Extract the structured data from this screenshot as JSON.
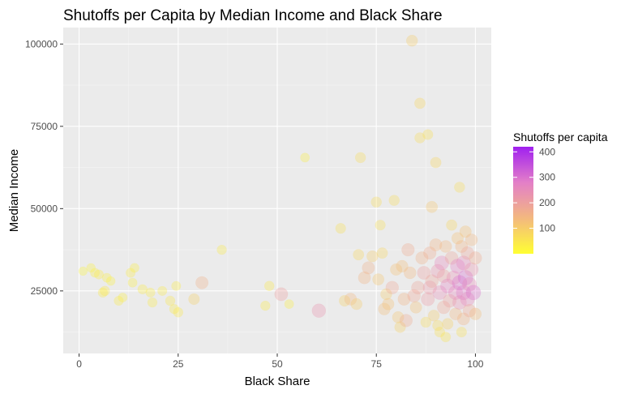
{
  "chart_data": {
    "type": "scatter",
    "title": "Shutoffs per Capita by Median Income and Black Share",
    "xlabel": "Black Share",
    "ylabel": "Median Income",
    "xlim": [
      -4,
      104
    ],
    "ylim": [
      6000,
      105000
    ],
    "x_ticks": [
      0,
      25,
      50,
      75,
      100
    ],
    "x_tick_labels": [
      "0",
      "25",
      "50",
      "75",
      "100"
    ],
    "y_ticks": [
      25000,
      50000,
      75000,
      100000
    ],
    "y_tick_labels": [
      "25000",
      "50000",
      "75000",
      "100000"
    ],
    "grid": true,
    "panel_background": "#ebebeb",
    "legend": {
      "title": "Shutoffs per capita",
      "position": "right",
      "labels": [
        "100",
        "200",
        "300",
        "400"
      ],
      "values": [
        100,
        200,
        300,
        400
      ],
      "range": [
        0,
        420
      ],
      "colors": [
        "#ffff33",
        "#f3b87f",
        "#e37fc8",
        "#a020f0"
      ]
    },
    "points": [
      {
        "x": 1,
        "y": 31000,
        "s": 20
      },
      {
        "x": 3,
        "y": 32000,
        "s": 25
      },
      {
        "x": 4,
        "y": 30500,
        "s": 30
      },
      {
        "x": 5,
        "y": 30000,
        "s": 35
      },
      {
        "x": 6,
        "y": 24500,
        "s": 40
      },
      {
        "x": 6.5,
        "y": 25000,
        "s": 45
      },
      {
        "x": 7,
        "y": 29000,
        "s": 30
      },
      {
        "x": 8,
        "y": 28000,
        "s": 25
      },
      {
        "x": 10,
        "y": 22000,
        "s": 35
      },
      {
        "x": 11,
        "y": 23000,
        "s": 30
      },
      {
        "x": 13,
        "y": 30500,
        "s": 35
      },
      {
        "x": 13.5,
        "y": 27500,
        "s": 30
      },
      {
        "x": 14,
        "y": 32000,
        "s": 30
      },
      {
        "x": 16,
        "y": 25500,
        "s": 40
      },
      {
        "x": 18,
        "y": 24500,
        "s": 35
      },
      {
        "x": 18.5,
        "y": 21500,
        "s": 40
      },
      {
        "x": 21,
        "y": 25000,
        "s": 35
      },
      {
        "x": 23,
        "y": 22000,
        "s": 45
      },
      {
        "x": 24,
        "y": 19500,
        "s": 40
      },
      {
        "x": 24.5,
        "y": 26500,
        "s": 35
      },
      {
        "x": 25,
        "y": 18500,
        "s": 45
      },
      {
        "x": 29,
        "y": 22500,
        "s": 90
      },
      {
        "x": 31,
        "y": 27500,
        "s": 160
      },
      {
        "x": 36,
        "y": 37500,
        "s": 40
      },
      {
        "x": 47,
        "y": 20500,
        "s": 40
      },
      {
        "x": 48,
        "y": 26500,
        "s": 45
      },
      {
        "x": 51,
        "y": 24000,
        "s": 200
      },
      {
        "x": 53,
        "y": 21000,
        "s": 30
      },
      {
        "x": 57,
        "y": 65500,
        "s": 30
      },
      {
        "x": 60.5,
        "y": 19000,
        "s": 230
      },
      {
        "x": 66,
        "y": 44000,
        "s": 60
      },
      {
        "x": 67,
        "y": 22000,
        "s": 90
      },
      {
        "x": 68.5,
        "y": 22500,
        "s": 140
      },
      {
        "x": 70,
        "y": 21000,
        "s": 100
      },
      {
        "x": 70.5,
        "y": 36000,
        "s": 80
      },
      {
        "x": 71,
        "y": 65500,
        "s": 70
      },
      {
        "x": 72,
        "y": 29000,
        "s": 150
      },
      {
        "x": 73,
        "y": 32000,
        "s": 160
      },
      {
        "x": 74,
        "y": 35500,
        "s": 100
      },
      {
        "x": 75,
        "y": 52000,
        "s": 70
      },
      {
        "x": 75.5,
        "y": 28500,
        "s": 110
      },
      {
        "x": 76,
        "y": 45000,
        "s": 60
      },
      {
        "x": 76.5,
        "y": 36500,
        "s": 80
      },
      {
        "x": 77,
        "y": 19500,
        "s": 130
      },
      {
        "x": 77.5,
        "y": 24000,
        "s": 100
      },
      {
        "x": 78,
        "y": 21000,
        "s": 120
      },
      {
        "x": 79,
        "y": 26000,
        "s": 180
      },
      {
        "x": 79.5,
        "y": 52500,
        "s": 70
      },
      {
        "x": 80,
        "y": 31500,
        "s": 120
      },
      {
        "x": 80.5,
        "y": 17000,
        "s": 110
      },
      {
        "x": 81,
        "y": 14000,
        "s": 90
      },
      {
        "x": 81.5,
        "y": 32500,
        "s": 130
      },
      {
        "x": 82,
        "y": 22500,
        "s": 150
      },
      {
        "x": 82.5,
        "y": 16000,
        "s": 170
      },
      {
        "x": 83,
        "y": 37500,
        "s": 170
      },
      {
        "x": 83.5,
        "y": 30500,
        "s": 140
      },
      {
        "x": 84,
        "y": 101000,
        "s": 100
      },
      {
        "x": 84.5,
        "y": 23500,
        "s": 180
      },
      {
        "x": 85,
        "y": 20000,
        "s": 120
      },
      {
        "x": 85.5,
        "y": 26000,
        "s": 190
      },
      {
        "x": 86,
        "y": 82000,
        "s": 80
      },
      {
        "x": 86,
        "y": 71500,
        "s": 70
      },
      {
        "x": 86.5,
        "y": 35000,
        "s": 160
      },
      {
        "x": 87,
        "y": 30500,
        "s": 200
      },
      {
        "x": 87.5,
        "y": 15500,
        "s": 70
      },
      {
        "x": 88,
        "y": 72500,
        "s": 60
      },
      {
        "x": 88,
        "y": 22500,
        "s": 210
      },
      {
        "x": 88.5,
        "y": 36500,
        "s": 170
      },
      {
        "x": 89,
        "y": 50500,
        "s": 110
      },
      {
        "x": 89,
        "y": 28000,
        "s": 190
      },
      {
        "x": 89.5,
        "y": 17500,
        "s": 100
      },
      {
        "x": 90,
        "y": 64000,
        "s": 80
      },
      {
        "x": 90,
        "y": 39000,
        "s": 150
      },
      {
        "x": 90.5,
        "y": 31000,
        "s": 230
      },
      {
        "x": 91,
        "y": 24500,
        "s": 250
      },
      {
        "x": 91,
        "y": 12500,
        "s": 60
      },
      {
        "x": 91.5,
        "y": 33500,
        "s": 260
      },
      {
        "x": 92,
        "y": 29500,
        "s": 200
      },
      {
        "x": 92,
        "y": 20000,
        "s": 180
      },
      {
        "x": 92.5,
        "y": 38500,
        "s": 140
      },
      {
        "x": 93,
        "y": 26500,
        "s": 270
      },
      {
        "x": 93,
        "y": 15000,
        "s": 90
      },
      {
        "x": 93.5,
        "y": 22000,
        "s": 200
      },
      {
        "x": 94,
        "y": 45000,
        "s": 80
      },
      {
        "x": 94,
        "y": 35000,
        "s": 190
      },
      {
        "x": 94.5,
        "y": 29000,
        "s": 240
      },
      {
        "x": 95,
        "y": 24500,
        "s": 260
      },
      {
        "x": 95,
        "y": 18000,
        "s": 140
      },
      {
        "x": 95.5,
        "y": 41000,
        "s": 120
      },
      {
        "x": 95.5,
        "y": 32500,
        "s": 280
      },
      {
        "x": 96,
        "y": 56500,
        "s": 70
      },
      {
        "x": 96,
        "y": 27500,
        "s": 300
      },
      {
        "x": 96,
        "y": 21500,
        "s": 240
      },
      {
        "x": 96.5,
        "y": 38500,
        "s": 150
      },
      {
        "x": 96.5,
        "y": 12500,
        "s": 60
      },
      {
        "x": 97,
        "y": 33500,
        "s": 260
      },
      {
        "x": 97,
        "y": 24500,
        "s": 290
      },
      {
        "x": 97,
        "y": 16500,
        "s": 150
      },
      {
        "x": 97.5,
        "y": 43000,
        "s": 120
      },
      {
        "x": 97.5,
        "y": 29000,
        "s": 310
      },
      {
        "x": 98,
        "y": 22500,
        "s": 260
      },
      {
        "x": 98,
        "y": 36500,
        "s": 190
      },
      {
        "x": 98.5,
        "y": 27000,
        "s": 250
      },
      {
        "x": 98.5,
        "y": 19000,
        "s": 180
      },
      {
        "x": 99,
        "y": 40500,
        "s": 140
      },
      {
        "x": 99,
        "y": 31500,
        "s": 230
      },
      {
        "x": 99.5,
        "y": 24500,
        "s": 300
      },
      {
        "x": 100,
        "y": 35000,
        "s": 170
      },
      {
        "x": 100,
        "y": 18000,
        "s": 130
      },
      {
        "x": 90.5,
        "y": 14500,
        "s": 70
      },
      {
        "x": 92.5,
        "y": 11000,
        "s": 50
      },
      {
        "x": 88.5,
        "y": 26000,
        "s": 220
      }
    ]
  }
}
